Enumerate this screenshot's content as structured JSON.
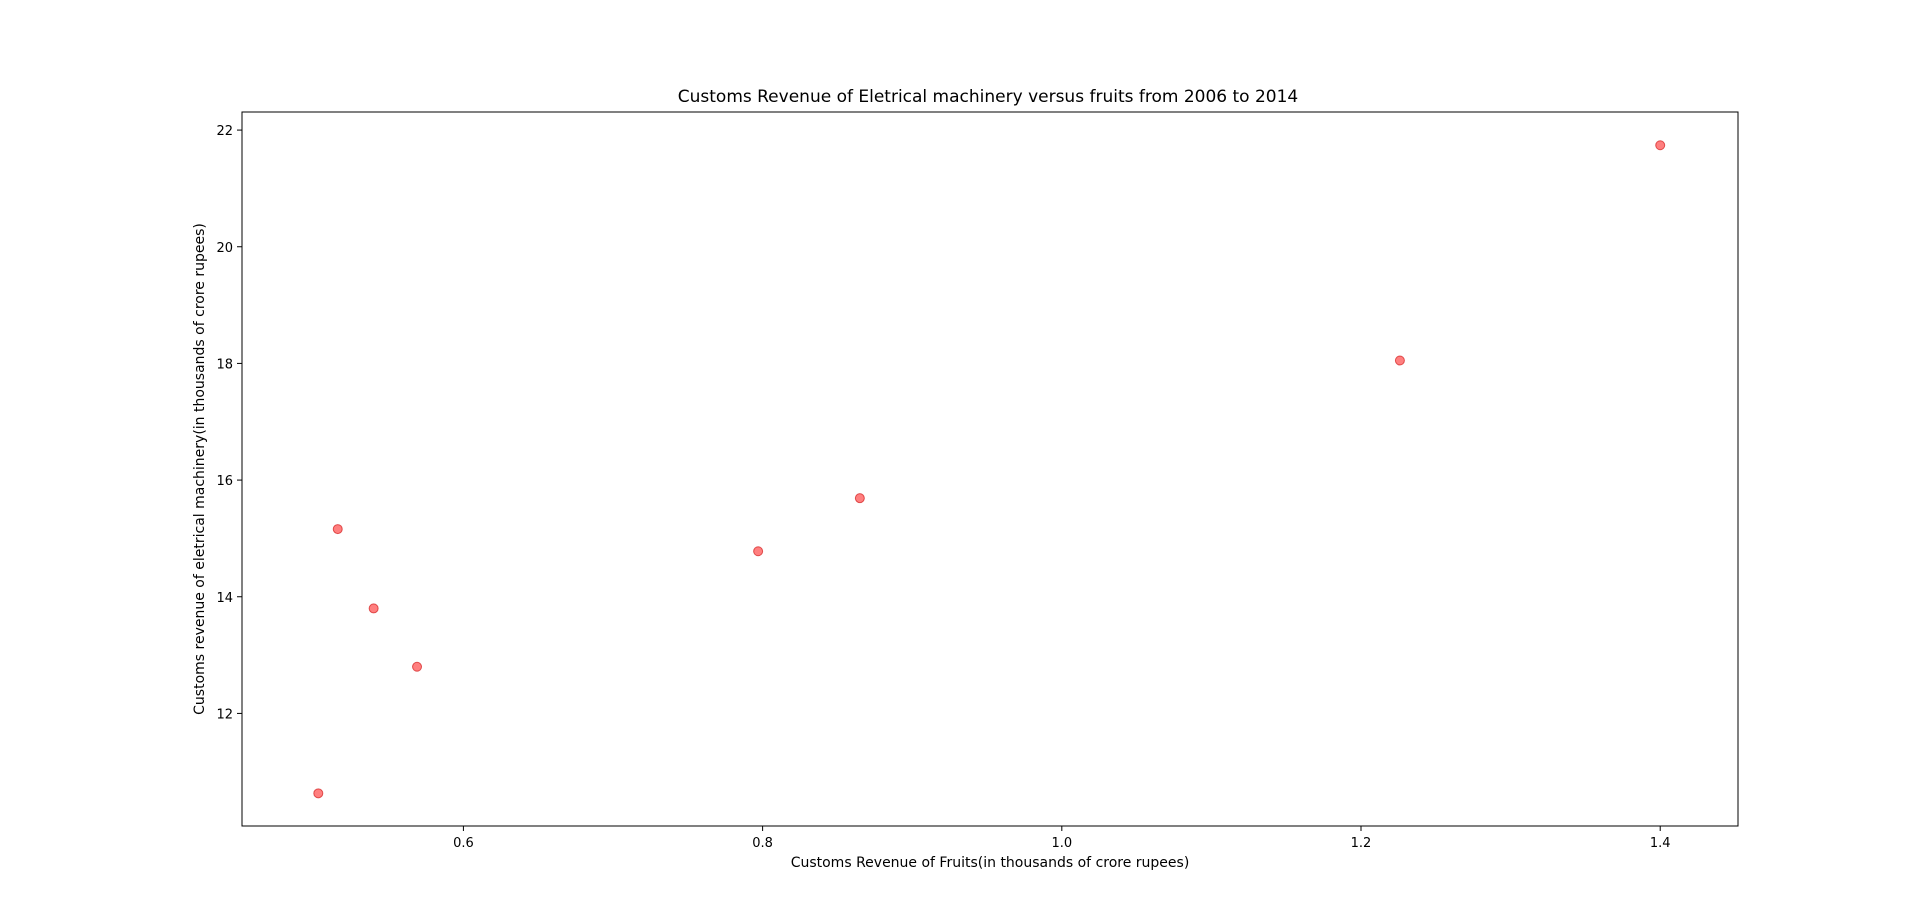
{
  "chart_data": {
    "type": "scatter",
    "title": "Customs Revenue of Eletrical machinery versus fruits  from 2006 to 2014",
    "xlabel": "Customs Revenue of Fruits(in thousands of crore rupees)",
    "ylabel": "Customs revenue of eletrical machinery(in thousands of crore rupees)",
    "xlim": [
      0.452,
      1.452
    ],
    "ylim": [
      10.07,
      22.31
    ],
    "xticks": [
      0.6,
      0.8,
      1.0,
      1.2,
      1.4
    ],
    "xtick_labels": [
      "0.6",
      "0.8",
      "1.0",
      "1.2",
      "1.4"
    ],
    "yticks": [
      12,
      14,
      16,
      18,
      20,
      22
    ],
    "ytick_labels": [
      "12",
      "14",
      "16",
      "18",
      "20",
      "22"
    ],
    "grid": false,
    "legend": false,
    "marker_color": "#ff0000",
    "marker_edge_color": "#cc0000",
    "marker_opacity": 0.5,
    "points": [
      {
        "x": 0.503,
        "y": 10.63
      },
      {
        "x": 0.516,
        "y": 15.16
      },
      {
        "x": 0.54,
        "y": 13.8
      },
      {
        "x": 0.569,
        "y": 12.8
      },
      {
        "x": 0.797,
        "y": 14.78
      },
      {
        "x": 0.865,
        "y": 15.69
      },
      {
        "x": 1.226,
        "y": 18.05
      },
      {
        "x": 1.4,
        "y": 21.74
      }
    ]
  }
}
